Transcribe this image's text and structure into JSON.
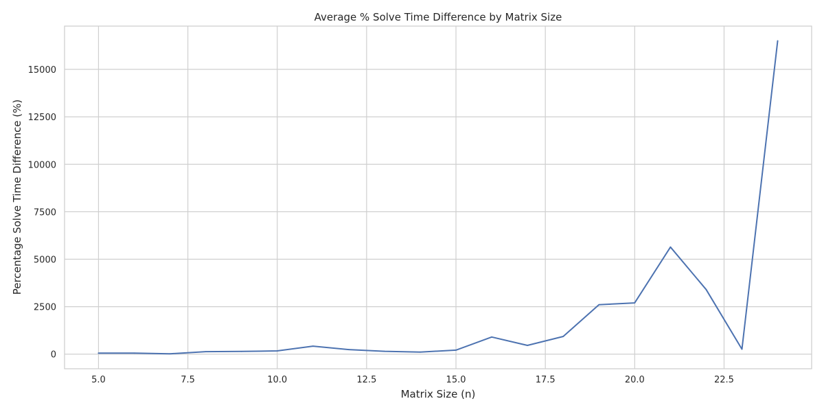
{
  "chart_data": {
    "type": "line",
    "title": "Average % Solve Time Difference by Matrix Size",
    "xlabel": "Matrix Size (n)",
    "ylabel": "Percentage Solve Time Difference (%)",
    "xlim": [
      4.05,
      24.95
    ],
    "ylim": [
      -770,
      17280
    ],
    "xticks": [
      5.0,
      7.5,
      10.0,
      12.5,
      15.0,
      17.5,
      20.0,
      22.5
    ],
    "xtick_labels": [
      "5.0",
      "7.5",
      "10.0",
      "12.5",
      "15.0",
      "17.5",
      "20.0",
      "22.5"
    ],
    "yticks": [
      0,
      2500,
      5000,
      7500,
      10000,
      12500,
      15000
    ],
    "ytick_labels": [
      "0",
      "2500",
      "5000",
      "7500",
      "10000",
      "12500",
      "15000"
    ],
    "grid": true,
    "series": [
      {
        "color": "#4c72b0",
        "x": [
          5,
          6,
          7,
          8,
          9,
          10,
          11,
          12,
          13,
          14,
          15,
          16,
          17,
          18,
          19,
          20,
          21,
          22,
          23,
          24
        ],
        "y": [
          50,
          50,
          20,
          130,
          140,
          170,
          420,
          240,
          150,
          110,
          210,
          900,
          460,
          930,
          2600,
          2700,
          5640,
          3400,
          260,
          16500
        ]
      }
    ]
  }
}
